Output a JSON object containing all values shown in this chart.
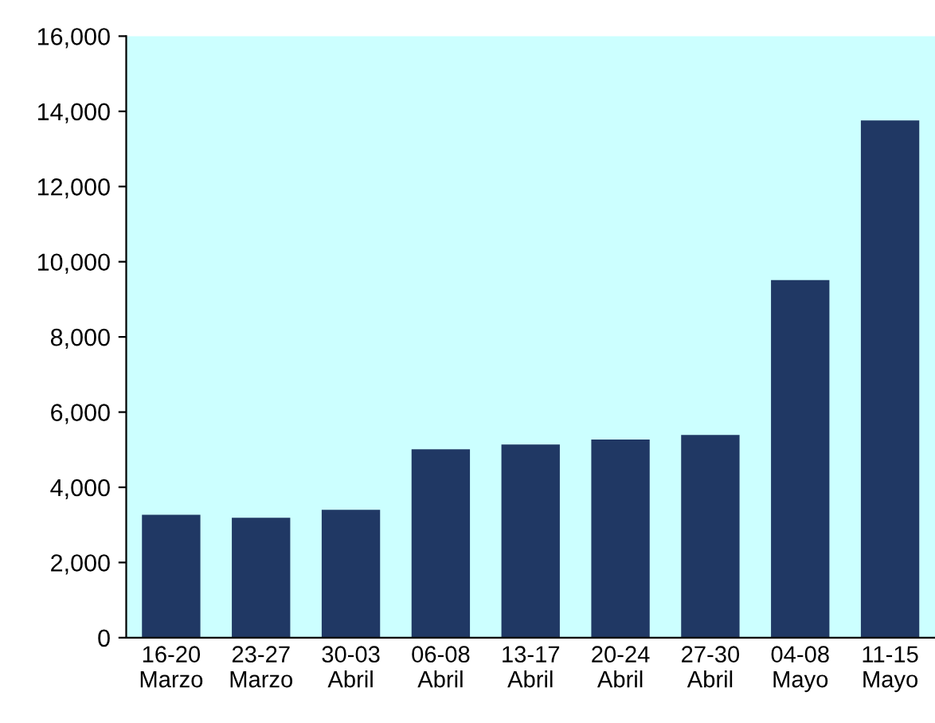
{
  "chart_data": {
    "type": "bar",
    "categories": [
      "16-20\nMarzo",
      "23-27\nMarzo",
      "30-03\nAbril",
      "06-08\nAbril",
      "13-17\nAbril",
      "20-24\nAbril",
      "27-30\nAbril",
      "04-08\nMayo",
      "11-15\nMayo"
    ],
    "values": [
      3270,
      3190,
      3400,
      5010,
      5140,
      5270,
      5390,
      9510,
      13760
    ],
    "color": "#203864",
    "ylim": [
      0,
      16000
    ],
    "yticks": [
      {
        "value": 0,
        "label": "0"
      },
      {
        "value": 2000,
        "label": "2,000"
      },
      {
        "value": 4000,
        "label": "4,000"
      },
      {
        "value": 6000,
        "label": "6,000"
      },
      {
        "value": 8000,
        "label": "8,000"
      },
      {
        "value": 10000,
        "label": "10,000"
      },
      {
        "value": 12000,
        "label": "12,000"
      },
      {
        "value": 14000,
        "label": "14,000"
      },
      {
        "value": 16000,
        "label": "16,000"
      }
    ],
    "grid": false,
    "legend": false
  }
}
